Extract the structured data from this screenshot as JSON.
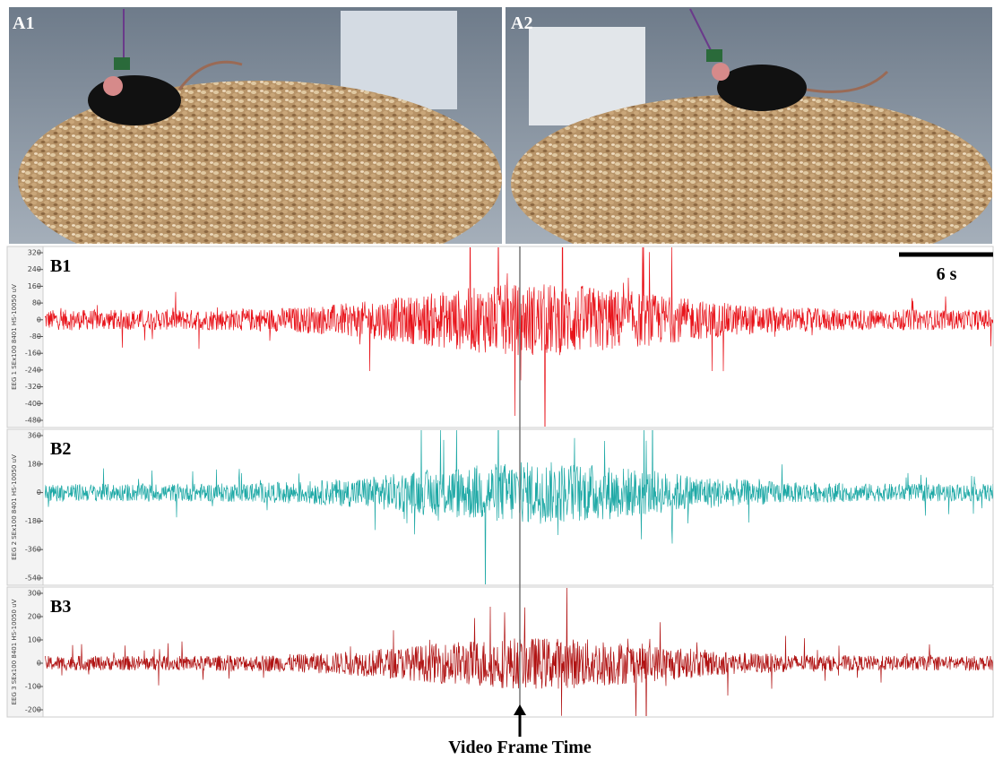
{
  "photos": [
    {
      "label": "A1"
    },
    {
      "label": "A2"
    }
  ],
  "eeg": [
    {
      "label": "B1",
      "channel": "EEG 1 SEx100 8401 HS-10050 uV",
      "color": "#e8141b",
      "yticks": [
        320,
        240,
        160,
        80,
        0,
        -80,
        -160,
        -240,
        -320,
        -400,
        -480
      ]
    },
    {
      "label": "B2",
      "channel": "EEG 2 SEx100 8401 HS-10050 uV",
      "color": "#1fa9a6",
      "yticks": [
        360,
        180,
        0,
        -180,
        -360,
        -540
      ]
    },
    {
      "label": "B3",
      "channel": "EEG 3 SEx100 8401 HS-10050 uV",
      "color": "#b01212",
      "yticks": [
        300,
        200,
        100,
        0,
        -100,
        -200
      ]
    }
  ],
  "scale_bar": "6 s",
  "marker": "Video Frame Time"
}
